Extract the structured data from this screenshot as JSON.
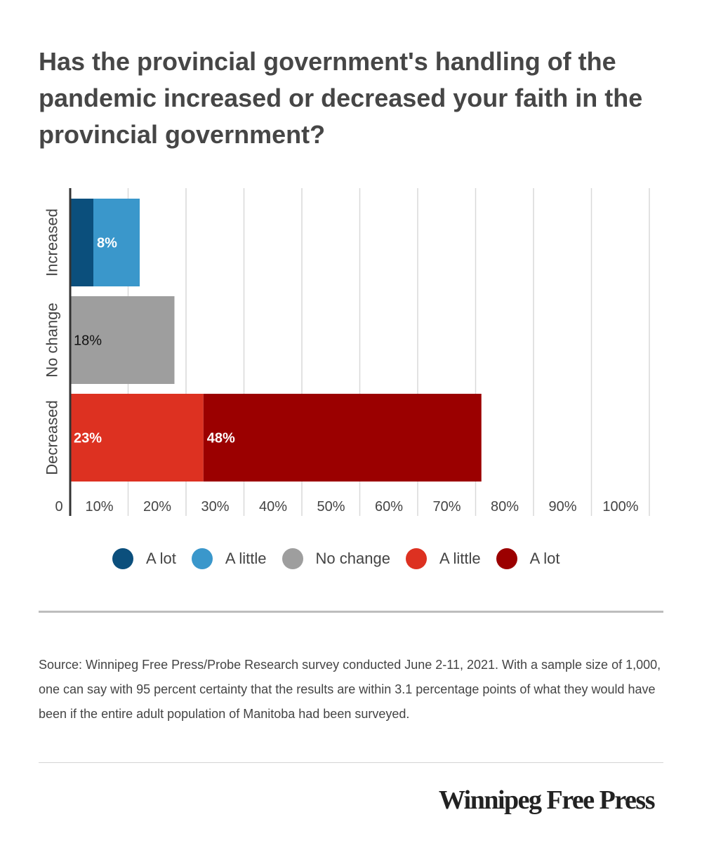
{
  "title": "Has the provincial government's handling of the pandemic increased or decreased your faith in the provincial government?",
  "legend": [
    {
      "label": "A lot",
      "color": "#0b4f7c"
    },
    {
      "label": "A little",
      "color": "#3a97cb"
    },
    {
      "label": "No change",
      "color": "#9e9e9e"
    },
    {
      "label": "A little",
      "color": "#dd3121"
    },
    {
      "label": "A lot",
      "color": "#9b0000"
    }
  ],
  "chart_data": {
    "type": "bar",
    "orientation": "horizontal",
    "stacked": true,
    "categories": [
      "Increased",
      "No change",
      "Decreased"
    ],
    "xlim": [
      0,
      100
    ],
    "x_ticks": [
      "0",
      "10%",
      "20%",
      "30%",
      "40%",
      "50%",
      "60%",
      "70%",
      "80%",
      "90%",
      "100%"
    ],
    "grid": true,
    "legend_position": "bottom",
    "segments": [
      {
        "category": "Increased",
        "color": "#0b4f7c",
        "value": 4,
        "label": ""
      },
      {
        "category": "Increased",
        "color": "#3a97cb",
        "value": 8,
        "label": "8%"
      },
      {
        "category": "No change",
        "color": "#9e9e9e",
        "value": 18,
        "label": "18%"
      },
      {
        "category": "Decreased",
        "color": "#dd3121",
        "value": 23,
        "label": "23%"
      },
      {
        "category": "Decreased",
        "color": "#9b0000",
        "value": 48,
        "label": "48%"
      }
    ]
  },
  "source": "Source: Winnipeg Free Press/Probe Research survey conducted June 2-11, 2021. With a sample size of 1,000, one can say with 95 percent certainty that the results are within 3.1 percentage points of what they would have been if the entire adult population of Manitoba had been surveyed.",
  "brand": "Winnipeg Free Press"
}
